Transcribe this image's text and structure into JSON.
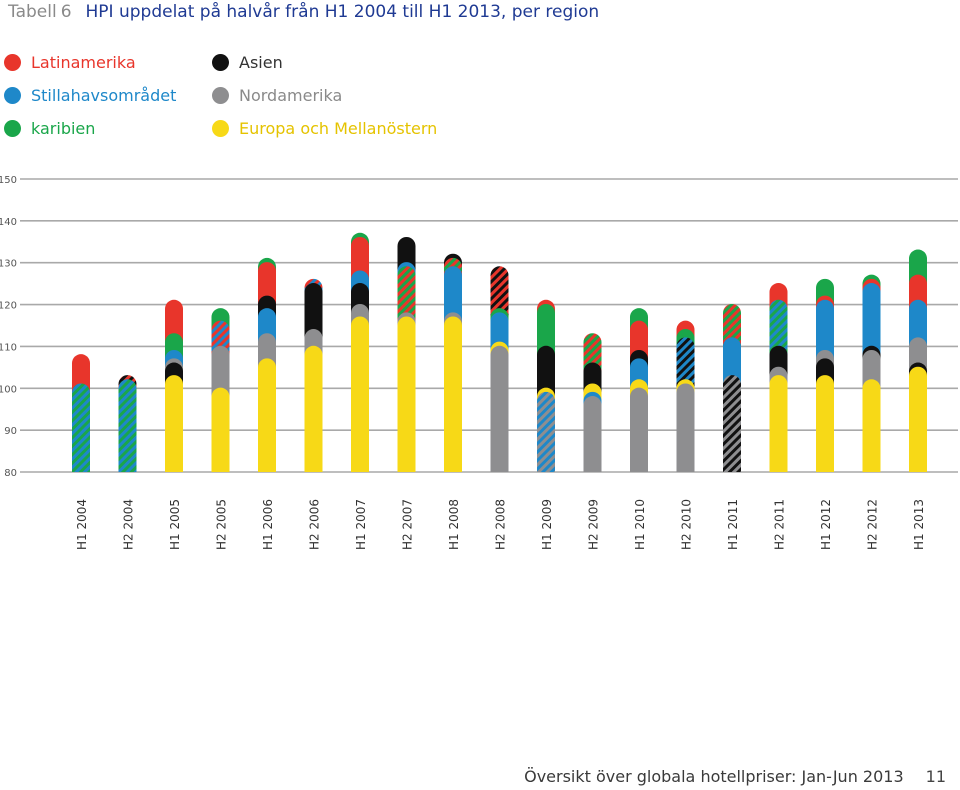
{
  "page": {
    "table_label": "Tabell",
    "table_number": "6",
    "title": "HPI uppdelat på halvår från H1 2004 till H1 2013, per region",
    "footer": "Översikt över globala hotellpriser: Jan-Jun 2013",
    "page_number": "11"
  },
  "legend": [
    {
      "name": "Latinamerika",
      "color": "#e8352b"
    },
    {
      "name": "Stillahavsområdet",
      "color": "#1e88c9"
    },
    {
      "name": "karibien",
      "color": "#1aa64a"
    },
    {
      "name": "Asien",
      "color": "#111111"
    },
    {
      "name": "Nordamerika",
      "color": "#8e8e90"
    },
    {
      "name": "Europa och Mellanöstern",
      "color": "#f7d917"
    }
  ],
  "chart_data": {
    "type": "bar",
    "title": "HPI uppdelat på halvår från H1 2004 till H1 2013, per region",
    "ylim": [
      80,
      150
    ],
    "yticks": [
      80,
      90,
      100,
      110,
      120,
      130,
      140,
      150
    ],
    "categories": [
      "H1 2004",
      "H2 2004",
      "H1 2005",
      "H2 2005",
      "H1 2006",
      "H2 2006",
      "H1 2007",
      "H2 2007",
      "H1 2008",
      "H2 2008",
      "H1 2009",
      "H2 2009",
      "H1 2010",
      "H2 2010",
      "H1 2011",
      "H2 2011",
      "H1 2012",
      "H2 2012",
      "H1 2013"
    ],
    "colors": {
      "Latinamerika": "#e8352b",
      "Stillahavsområdet": "#1e88c9",
      "karibien": "#1aa64a",
      "Asien": "#111111",
      "Nordamerika": "#8e8e90",
      "Europa och Mellanöstern": "#f7d917"
    },
    "series": [
      {
        "name": "Latinamerika",
        "values": [
          106,
          101,
          119,
          114,
          128,
          124,
          134,
          127,
          129,
          127,
          119,
          111,
          114,
          114,
          118,
          123,
          120,
          124,
          125
        ]
      },
      {
        "name": "Stillahavsområdet",
        "values": [
          99,
          100,
          107,
          114,
          117,
          124,
          126,
          128,
          127,
          116,
          97,
          97,
          105,
          110,
          110,
          119,
          119,
          123,
          119
        ]
      },
      {
        "name": "karibien",
        "values": [
          99,
          100,
          111,
          117,
          129,
          124,
          135,
          127,
          129,
          117,
          118,
          111,
          117,
          112,
          118,
          119,
          124,
          125,
          131
        ]
      },
      {
        "name": "Asien",
        "values": [
          99,
          101,
          104,
          114,
          120,
          123,
          123,
          134,
          130,
          127,
          108,
          104,
          107,
          110,
          101,
          108,
          105,
          108,
          104
        ]
      },
      {
        "name": "Nordamerika",
        "values": [
          99,
          100,
          105,
          108,
          111,
          112,
          118,
          116,
          116,
          108,
          97,
          96,
          98,
          99,
          101,
          103,
          107,
          107,
          110
        ]
      },
      {
        "name": "Europa och Mellanöstern",
        "values": [
          99,
          100,
          101,
          98,
          105,
          108,
          115,
          115,
          115,
          109,
          98,
          99,
          100,
          100,
          101,
          101,
          101,
          100,
          103
        ]
      }
    ]
  }
}
